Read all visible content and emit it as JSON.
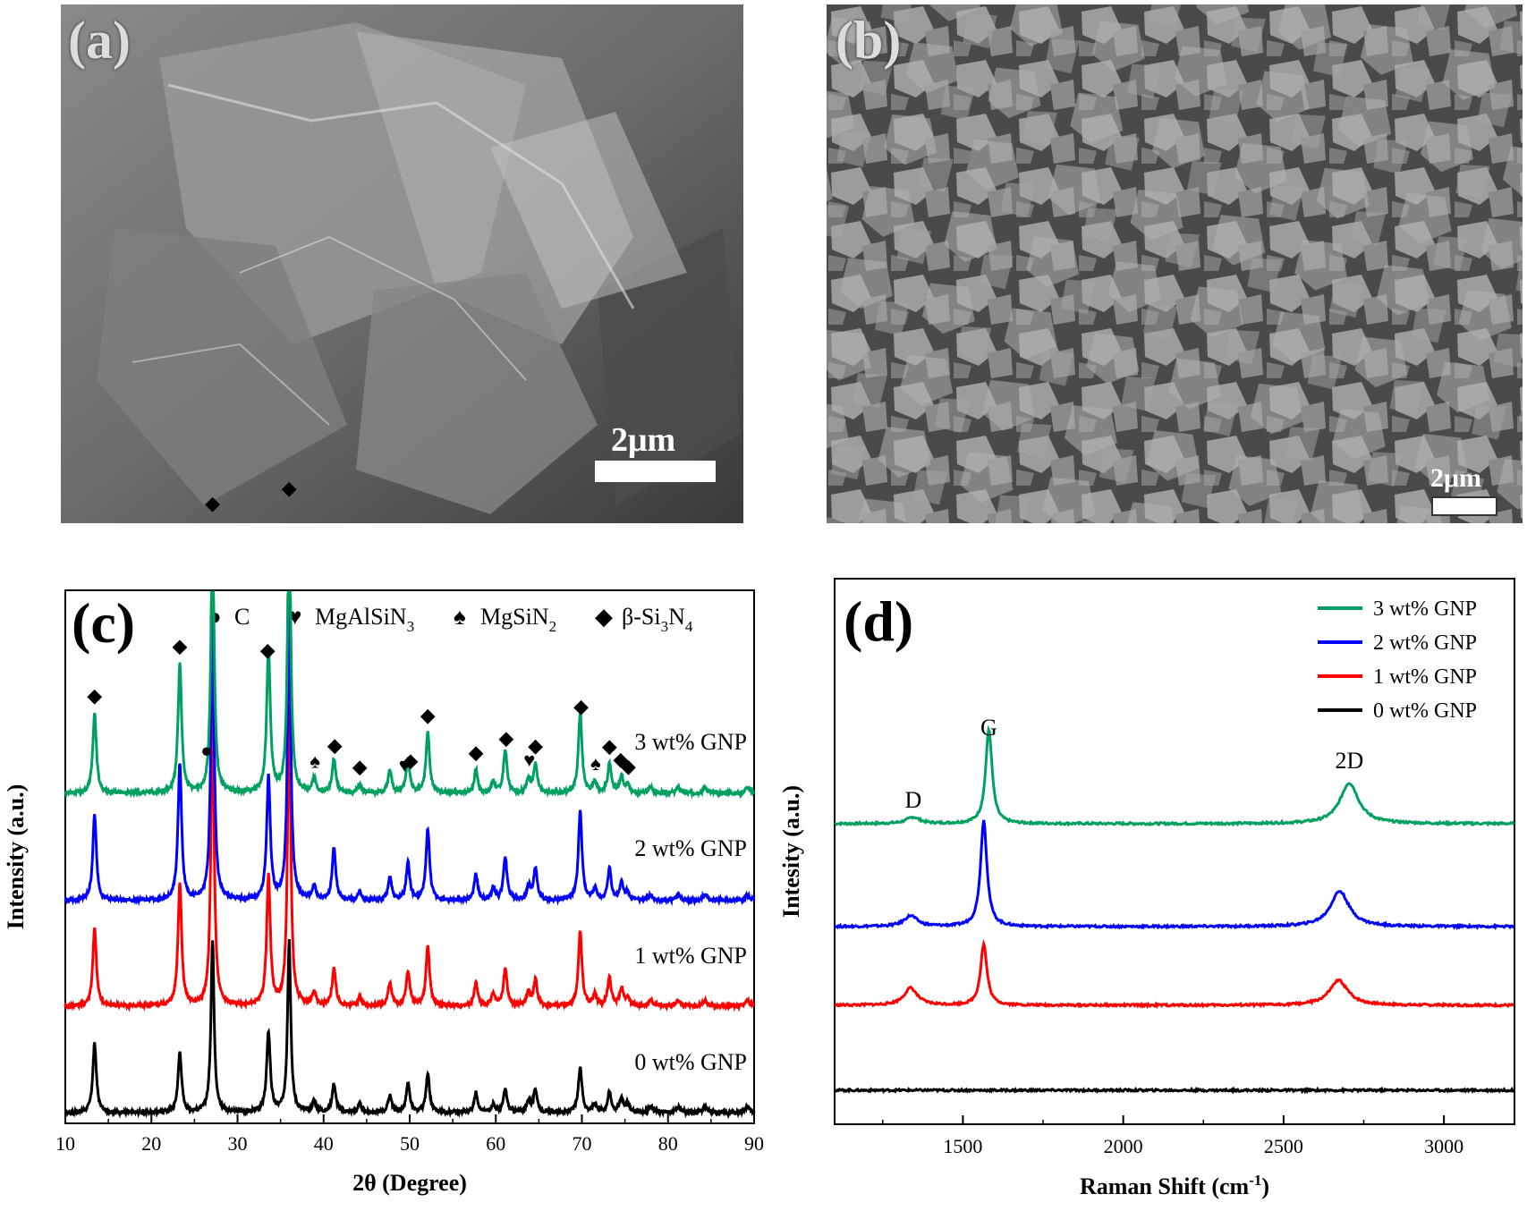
{
  "panel_a": {
    "label": "(a)",
    "scale_bar": "2μm"
  },
  "panel_b": {
    "label": "(b)",
    "scale_bar": "2μm"
  },
  "chart_data": [
    {
      "panel": "(c)",
      "type": "line",
      "xlabel": "2θ (Degree)",
      "ylabel": "Intensity (a.u.)",
      "xlim": [
        10,
        90
      ],
      "xticks": [
        10,
        20,
        30,
        40,
        50,
        60,
        70,
        80,
        90
      ],
      "grid": false,
      "legend": [
        {
          "symbol": "●",
          "label": "C"
        },
        {
          "symbol": "♥",
          "label": "MgAlSiN",
          "sub": "3"
        },
        {
          "symbol": "♠",
          "label": "MgSiN",
          "sub": "2"
        },
        {
          "symbol": "◆",
          "label": "β-Si",
          "sub": "3",
          "label2": "N",
          "sub2": "4"
        }
      ],
      "peaks": [
        {
          "x": 13.4,
          "h": [
            0.28,
            0.3,
            0.27,
            0.24
          ],
          "w": 0.25
        },
        {
          "x": 23.3,
          "h": [
            0.45,
            0.48,
            0.43,
            0.21
          ],
          "w": 0.25
        },
        {
          "x": 27.1,
          "h": [
            0.95,
            1.05,
            1.05,
            0.6
          ],
          "w": 0.22
        },
        {
          "x": 33.6,
          "h": [
            0.5,
            0.43,
            0.45,
            0.28
          ],
          "w": 0.25
        },
        {
          "x": 36.0,
          "h": [
            1.0,
            1.05,
            1.05,
            0.6
          ],
          "w": 0.22
        },
        {
          "x": 38.9,
          "h": [
            0.05,
            0.05,
            0.05,
            0.04
          ],
          "w": 0.25
        },
        {
          "x": 41.2,
          "h": [
            0.12,
            0.18,
            0.13,
            0.1
          ],
          "w": 0.25
        },
        {
          "x": 44.2,
          "h": [
            0.03,
            0.03,
            0.03,
            0.03
          ],
          "w": 0.25
        },
        {
          "x": 47.7,
          "h": [
            0.08,
            0.08,
            0.08,
            0.06
          ],
          "w": 0.25
        },
        {
          "x": 49.8,
          "h": [
            0.12,
            0.13,
            0.12,
            0.1
          ],
          "w": 0.25
        },
        {
          "x": 52.1,
          "h": [
            0.21,
            0.25,
            0.21,
            0.13
          ],
          "w": 0.25
        },
        {
          "x": 57.7,
          "h": [
            0.08,
            0.09,
            0.08,
            0.07
          ],
          "w": 0.25
        },
        {
          "x": 59.7,
          "h": [
            0.04,
            0.04,
            0.04,
            0.03
          ],
          "w": 0.25
        },
        {
          "x": 61.1,
          "h": [
            0.15,
            0.15,
            0.13,
            0.08
          ],
          "w": 0.25
        },
        {
          "x": 63.8,
          "h": [
            0.05,
            0.05,
            0.05,
            0.04
          ],
          "w": 0.25
        },
        {
          "x": 64.6,
          "h": [
            0.1,
            0.11,
            0.09,
            0.08
          ],
          "w": 0.25
        },
        {
          "x": 69.8,
          "h": [
            0.28,
            0.31,
            0.26,
            0.16
          ],
          "w": 0.25
        },
        {
          "x": 71.5,
          "h": [
            0.04,
            0.04,
            0.04,
            0.03
          ],
          "w": 0.25
        },
        {
          "x": 73.2,
          "h": [
            0.1,
            0.11,
            0.1,
            0.07
          ],
          "w": 0.25
        },
        {
          "x": 74.6,
          "h": [
            0.06,
            0.06,
            0.06,
            0.05
          ],
          "w": 0.25
        },
        {
          "x": 75.3,
          "h": [
            0.03,
            0.03,
            0.03,
            0.03
          ],
          "w": 0.25
        },
        {
          "x": 78.0,
          "h": [
            0.02,
            0.02,
            0.02,
            0.02
          ],
          "w": 0.3
        },
        {
          "x": 81.2,
          "h": [
            0.02,
            0.02,
            0.02,
            0.02
          ],
          "w": 0.3
        },
        {
          "x": 84.3,
          "h": [
            0.02,
            0.02,
            0.02,
            0.02
          ],
          "w": 0.3
        },
        {
          "x": 89.2,
          "h": [
            0.02,
            0.02,
            0.02,
            0.02
          ],
          "w": 0.3
        }
      ],
      "series": [
        {
          "name": "0 wt% GNP",
          "color": "#000000"
        },
        {
          "name": "1 wt% GNP",
          "color": "#ff0000"
        },
        {
          "name": "2 wt% GNP",
          "color": "#0000ff"
        },
        {
          "name": "3 wt% GNP",
          "color": "#00a060"
        }
      ],
      "phase_markers": [
        {
          "symbol": "◆",
          "x": 13.4
        },
        {
          "symbol": "◆",
          "x": 23.3
        },
        {
          "symbol": "●",
          "x": 26.4
        },
        {
          "symbol": "◆",
          "x": 27.1
        },
        {
          "symbol": "◆",
          "x": 33.5
        },
        {
          "symbol": "◆",
          "x": 36.0
        },
        {
          "symbol": "♠",
          "x": 39.0
        },
        {
          "symbol": "◆",
          "x": 41.3
        },
        {
          "symbol": "◆",
          "x": 44.2
        },
        {
          "symbol": "♥",
          "x": 49.4
        },
        {
          "symbol": "◆",
          "x": 50.1
        },
        {
          "symbol": "◆",
          "x": 52.1
        },
        {
          "symbol": "◆",
          "x": 57.7
        },
        {
          "symbol": "◆",
          "x": 61.2
        },
        {
          "symbol": "♥",
          "x": 63.9
        },
        {
          "symbol": "◆",
          "x": 64.6
        },
        {
          "symbol": "◆",
          "x": 69.9
        },
        {
          "symbol": "♠",
          "x": 71.6
        },
        {
          "symbol": "◆",
          "x": 73.2
        },
        {
          "symbol": "◆",
          "x": 74.5
        },
        {
          "symbol": "◆",
          "x": 75.4
        }
      ]
    },
    {
      "panel": "(d)",
      "type": "line",
      "xlabel": "Raman Shift (cm",
      "xlabel_sup": "-1",
      "xlabel_end": ")",
      "ylabel": "Intesity (a.u.)",
      "xlim": [
        1100,
        3220
      ],
      "xticks": [
        1500,
        2000,
        2500,
        3000
      ],
      "grid": false,
      "legend_position": "top-right",
      "series": [
        {
          "name": "3 wt% GNP",
          "color": "#00a060",
          "D": 0.06,
          "G": 0.88,
          "D2": 0.38,
          "Dx": 1345,
          "Gx": 1581,
          "D2x": 2705
        },
        {
          "name": "2 wt% GNP",
          "color": "#0000ff",
          "D": 0.1,
          "G": 0.99,
          "D2": 0.33,
          "Dx": 1337,
          "Gx": 1565,
          "D2x": 2675
        },
        {
          "name": "1 wt% GNP",
          "color": "#ff0000",
          "D": 0.16,
          "G": 0.57,
          "D2": 0.23,
          "Dx": 1337,
          "Gx": 1565,
          "D2x": 2672
        },
        {
          "name": "0 wt% GNP",
          "color": "#000000",
          "D": 0.0,
          "G": 0.0,
          "D2": 0.0,
          "Dx": 1345,
          "Gx": 1581,
          "D2x": 2700
        }
      ],
      "peak_labels": [
        {
          "text": "D",
          "x": 1345
        },
        {
          "text": "G",
          "x": 1581
        },
        {
          "text": "2D",
          "x": 2705
        }
      ]
    }
  ]
}
